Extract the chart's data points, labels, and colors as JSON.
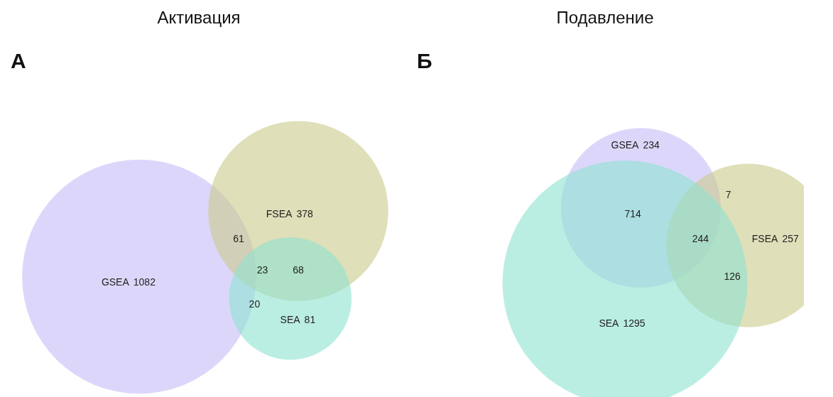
{
  "chart_data": [
    {
      "type": "other",
      "title": "Активация",
      "annotations": [
        "А",
        "61",
        "23",
        "68",
        "20"
      ],
      "categories": [
        "GSEA",
        "FSEA",
        "SEA"
      ],
      "values": [
        1082,
        378,
        81
      ],
      "colors": [
        "#c4bdf7",
        "#c9ca8a",
        "#8ee3d0"
      ],
      "data_labels": true
    },
    {
      "type": "other",
      "title": "Подавление",
      "annotations": [
        "Б",
        "714",
        "7",
        "244",
        "126"
      ],
      "categories": [
        "GSEA",
        "FSEA",
        "SEA"
      ],
      "values": [
        234,
        257,
        1295
      ],
      "colors": [
        "#c4bdf7",
        "#c9ca8a",
        "#8ee3d0"
      ],
      "data_labels": true
    }
  ]
}
